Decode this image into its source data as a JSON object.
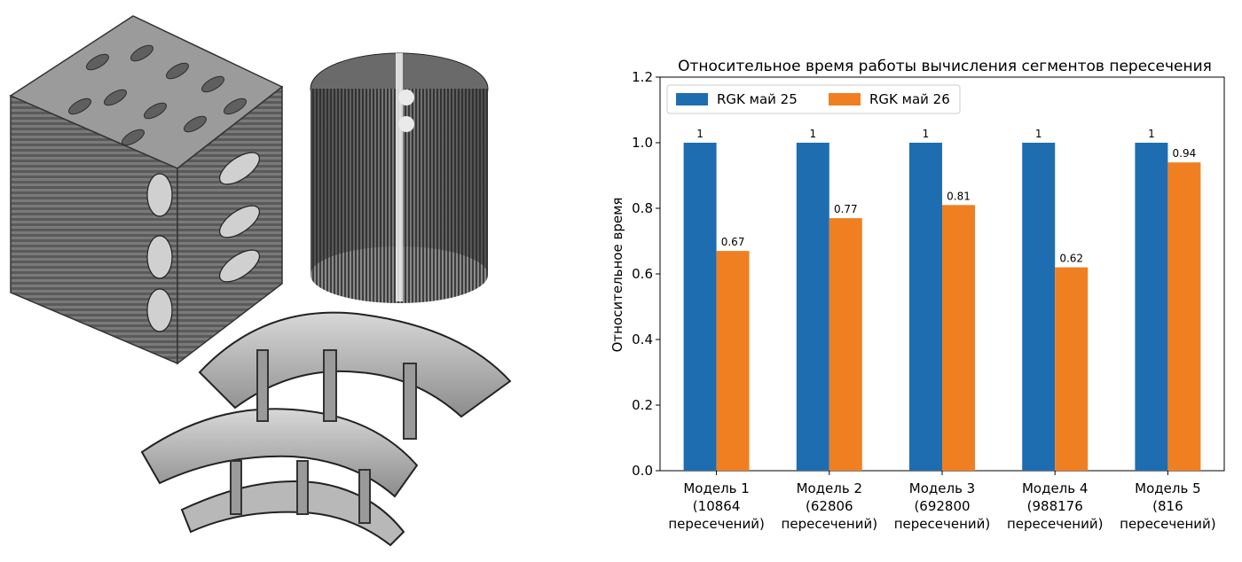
{
  "illustration": {
    "items": [
      "lattice-cube-model",
      "finned-cylinder-model",
      "turbine-segment-model"
    ]
  },
  "chart_data": {
    "type": "bar",
    "title": "Относительное время работы вычисления сегментов пересечения",
    "xlabel": "",
    "ylabel": "Относительное время",
    "ylim": [
      0,
      1.2
    ],
    "yticks": [
      "0.0",
      "0.2",
      "0.4",
      "0.6",
      "0.8",
      "1.0",
      "1.2"
    ],
    "categories": [
      [
        "Модель 1",
        "(10864",
        "пересечений)"
      ],
      [
        "Модель 2",
        "(62806",
        "пересечений)"
      ],
      [
        "Модель 3",
        "(692800",
        "пересечений)"
      ],
      [
        "Модель 4",
        "(988176",
        "пересечений)"
      ],
      [
        "Модель 5",
        "(816",
        "пересечений)"
      ]
    ],
    "series": [
      {
        "name": "RGK май 25",
        "values": [
          1,
          1,
          1,
          1,
          1
        ],
        "labels": [
          "1",
          "1",
          "1",
          "1",
          "1"
        ],
        "color": "#1f6db1"
      },
      {
        "name": "RGK май 26",
        "values": [
          0.67,
          0.77,
          0.81,
          0.62,
          0.94
        ],
        "labels": [
          "0.67",
          "0.77",
          "0.81",
          "0.62",
          "0.94"
        ],
        "color": "#f07f22"
      }
    ],
    "legend_position": "top-left",
    "grid": false
  }
}
